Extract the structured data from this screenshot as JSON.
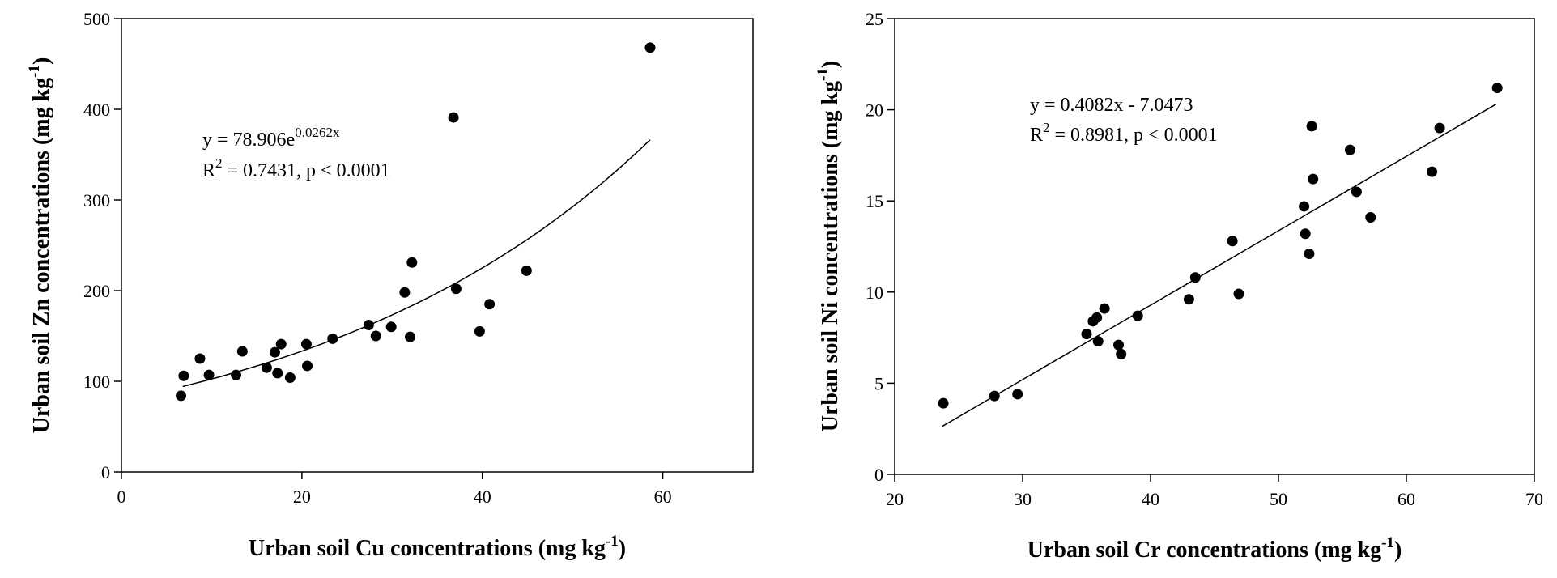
{
  "chart_data": [
    {
      "type": "scatter",
      "title": "",
      "xlabel": "Urban soil Cu concentrations (mg kg",
      "xlabel_sup": "-1",
      "xlabel_end": ")",
      "ylabel": "Urban soil Zn concentrations (mg kg",
      "ylabel_sup": "-1",
      "ylabel_end": ")",
      "xlim": [
        0,
        70
      ],
      "ylim": [
        0,
        500
      ],
      "xticks": [
        0,
        20,
        40,
        60
      ],
      "yticks": [
        0,
        100,
        200,
        300,
        400,
        500
      ],
      "grid": false,
      "fit": {
        "kind": "exponential",
        "a": 78.906,
        "b": 0.0262,
        "x_range": [
          6.8,
          58.6
        ]
      },
      "equation": {
        "line1_main": "y = 78.906e",
        "line1_sup": "0.0262x",
        "line2_main": "R",
        "line2_sup": "2",
        "line2_rest": " = 0.7431, p < 0.0001"
      },
      "points": [
        [
          6.6,
          84
        ],
        [
          6.9,
          106
        ],
        [
          8.7,
          125
        ],
        [
          9.7,
          107
        ],
        [
          12.7,
          107
        ],
        [
          13.4,
          133
        ],
        [
          16.1,
          115
        ],
        [
          17.0,
          132
        ],
        [
          17.3,
          109
        ],
        [
          17.7,
          141
        ],
        [
          18.7,
          104
        ],
        [
          20.5,
          141
        ],
        [
          20.6,
          117
        ],
        [
          23.4,
          147
        ],
        [
          27.4,
          162
        ],
        [
          28.2,
          150
        ],
        [
          29.9,
          160
        ],
        [
          31.4,
          198
        ],
        [
          32.0,
          149
        ],
        [
          32.2,
          231
        ],
        [
          36.8,
          391
        ],
        [
          37.1,
          202
        ],
        [
          39.7,
          155
        ],
        [
          40.8,
          185
        ],
        [
          44.9,
          222
        ],
        [
          58.6,
          468
        ]
      ]
    },
    {
      "type": "scatter",
      "title": "",
      "xlabel": "Urban soil Cr concentrations (mg kg",
      "xlabel_sup": "-1",
      "xlabel_end": ")",
      "ylabel": "Urban soil Ni concentrations (mg kg",
      "ylabel_sup": "-1",
      "ylabel_end": ")",
      "xlim": [
        20,
        70
      ],
      "ylim": [
        0,
        25
      ],
      "xticks": [
        20,
        30,
        40,
        50,
        60,
        70
      ],
      "yticks": [
        0,
        5,
        10,
        15,
        20,
        25
      ],
      "grid": false,
      "fit": {
        "kind": "linear",
        "slope": 0.4082,
        "intercept": -7.0473,
        "x_range": [
          23.7,
          67.0
        ]
      },
      "equation": {
        "line1_main": "y = 0.4082x - 7.0473",
        "line1_sup": "",
        "line2_main": "R",
        "line2_sup": "2",
        "line2_rest": " = 0.8981, p < 0.0001"
      },
      "points": [
        [
          23.8,
          3.9
        ],
        [
          27.8,
          4.3
        ],
        [
          29.6,
          4.4
        ],
        [
          35.0,
          7.7
        ],
        [
          35.5,
          8.4
        ],
        [
          35.8,
          8.6
        ],
        [
          35.9,
          7.3
        ],
        [
          36.4,
          9.1
        ],
        [
          37.5,
          7.1
        ],
        [
          37.7,
          6.6
        ],
        [
          39.0,
          8.7
        ],
        [
          43.0,
          9.6
        ],
        [
          43.5,
          10.8
        ],
        [
          46.4,
          12.8
        ],
        [
          46.9,
          9.9
        ],
        [
          52.0,
          14.7
        ],
        [
          52.1,
          13.2
        ],
        [
          52.4,
          12.1
        ],
        [
          52.6,
          19.1
        ],
        [
          52.7,
          16.2
        ],
        [
          55.6,
          17.8
        ],
        [
          56.1,
          15.5
        ],
        [
          57.2,
          14.1
        ],
        [
          62.0,
          16.6
        ],
        [
          62.6,
          19.0
        ],
        [
          67.1,
          21.2
        ]
      ]
    }
  ]
}
